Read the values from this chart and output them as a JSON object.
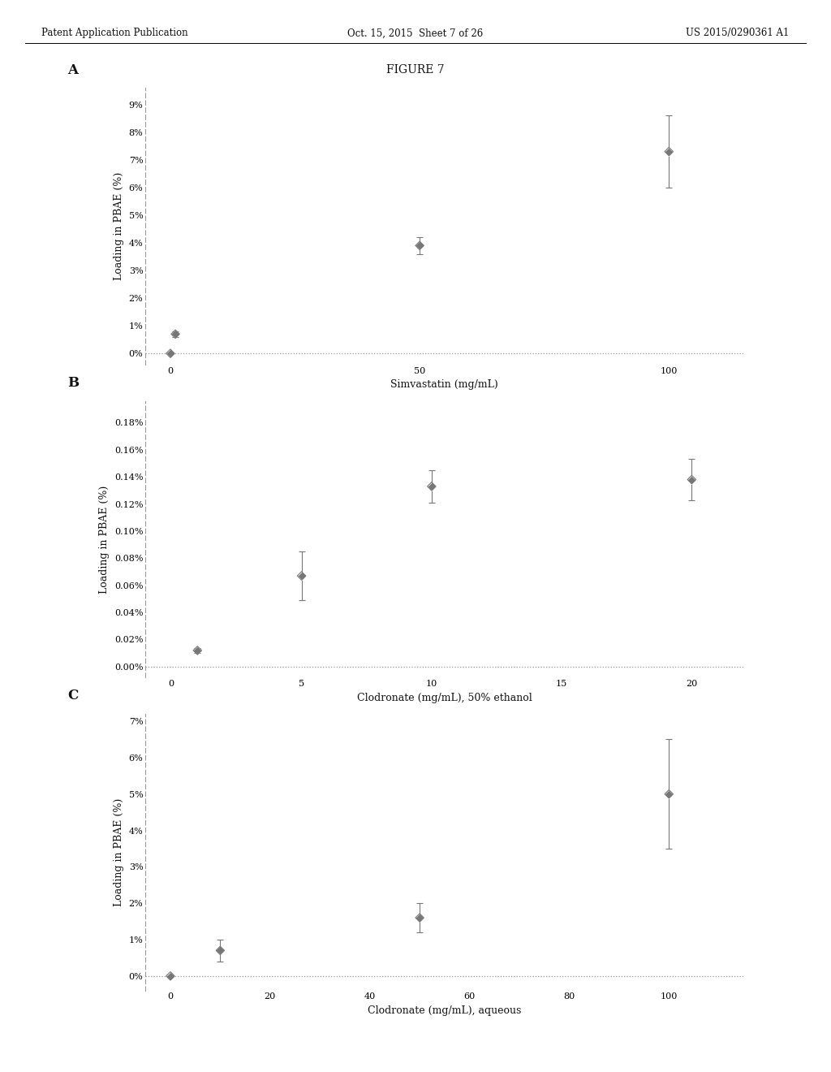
{
  "figure_title": "FIGURE 7",
  "header_left": "Patent Application Publication",
  "header_mid": "Oct. 15, 2015  Sheet 7 of 26",
  "header_right": "US 2015/0290361 A1",
  "panel_A": {
    "label": "A",
    "x": [
      0,
      1,
      50,
      100
    ],
    "y": [
      0.0,
      0.007,
      0.039,
      0.073
    ],
    "yerr": [
      0.0,
      0.001,
      0.003,
      0.013
    ],
    "xlabel": "Simvastatin (mg/mL)",
    "ylabel": "Loading in PBAE (%)",
    "xlim": [
      -5,
      115
    ],
    "ylim": [
      -0.004,
      0.096
    ],
    "yticks": [
      0.0,
      0.01,
      0.02,
      0.03,
      0.04,
      0.05,
      0.06,
      0.07,
      0.08,
      0.09
    ],
    "ytick_labels": [
      "0%",
      "1%",
      "2%",
      "3%",
      "4%",
      "5%",
      "6%",
      "7%",
      "8%",
      "9%"
    ],
    "xticks": [
      0,
      50,
      100
    ]
  },
  "panel_B": {
    "label": "B",
    "x": [
      1,
      5,
      10,
      20
    ],
    "y": [
      0.00012,
      0.00067,
      0.00133,
      0.00138
    ],
    "yerr": [
      2e-05,
      0.00018,
      0.00012,
      0.00015
    ],
    "xlabel": "Clodronate (mg/mL), 50% ethanol",
    "ylabel": "Loading in PBAE (%)",
    "xlim": [
      -1,
      22
    ],
    "ylim": [
      -8e-05,
      0.00196
    ],
    "yticks": [
      0.0,
      0.0002,
      0.0004,
      0.0006,
      0.0008,
      0.001,
      0.0012,
      0.0014,
      0.0016,
      0.0018
    ],
    "ytick_labels": [
      "0.00%",
      "0.02%",
      "0.04%",
      "0.06%",
      "0.08%",
      "0.10%",
      "0.12%",
      "0.14%",
      "0.16%",
      "0.18%"
    ],
    "xticks": [
      0,
      5,
      10,
      15,
      20
    ]
  },
  "panel_C": {
    "label": "C",
    "x": [
      0,
      10,
      50,
      100
    ],
    "y": [
      0.0,
      0.007,
      0.016,
      0.05
    ],
    "yerr": [
      0.0,
      0.003,
      0.004,
      0.015
    ],
    "xlabel": "Clodronate (mg/mL), aqueous",
    "ylabel": "Loading in PBAE (%)",
    "xlim": [
      -5,
      115
    ],
    "ylim": [
      -0.004,
      0.072
    ],
    "yticks": [
      0.0,
      0.01,
      0.02,
      0.03,
      0.04,
      0.05,
      0.06,
      0.07
    ],
    "ytick_labels": [
      "0%",
      "1%",
      "2%",
      "3%",
      "4%",
      "5%",
      "6%",
      "7%"
    ],
    "xticks": [
      0,
      20,
      40,
      60,
      80,
      100
    ]
  },
  "marker_color": "#777777",
  "marker_style": "D",
  "marker_size": 5,
  "ecolor": "#777777",
  "dotted_line_color": "#999999",
  "bg_color": "#ffffff",
  "font_color": "#111111",
  "font_size_header": 8.5,
  "font_size_label": 9,
  "font_size_tick": 8,
  "font_size_panel_label": 12,
  "font_size_title": 10
}
